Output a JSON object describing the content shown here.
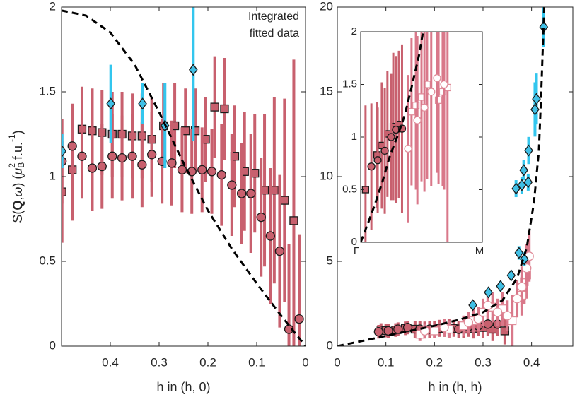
{
  "chart_data": [
    {
      "type": "scatter",
      "xlabel": "h in (h, 0)",
      "ylabel": [
        "S(",
        "Q",
        ",",
        "ω",
        ") (",
        "μ",
        "B",
        "2",
        " f.u.",
        "-1",
        ")"
      ],
      "annotation": [
        "Integrated",
        "fitted data"
      ],
      "xlim": [
        0.5,
        0
      ],
      "xticks": [
        0.4,
        0.3,
        0.2,
        0.1,
        0
      ],
      "ylim": [
        0,
        2
      ],
      "yticks": [
        0,
        0.5,
        1,
        1.5,
        2
      ],
      "series": [
        {
          "marker": "square",
          "color": "#c8606e",
          "edgecolor": "#1a1a1a",
          "errorcolor": "#c8606e",
          "x": [
            0.499,
            0.478,
            0.458,
            0.437,
            0.417,
            0.396,
            0.376,
            0.355,
            0.335,
            0.315,
            0.291,
            0.268,
            0.246,
            0.226,
            0.205,
            0.186,
            0.166,
            0.145,
            0.125,
            0.104,
            0.084,
            0.064,
            0.043,
            0.024
          ],
          "values": [
            0.91,
            1.04,
            1.28,
            1.27,
            1.26,
            1.25,
            1.25,
            1.24,
            1.24,
            1.22,
            1.3,
            1.3,
            1.27,
            1.27,
            1.22,
            1.41,
            1.4,
            1.12,
            1.03,
            1.02,
            0.92,
            0.92,
            0.86,
            0.74
          ],
          "errors": [
            0.3,
            0.3,
            0.25,
            0.25,
            0.25,
            0.25,
            0.25,
            0.25,
            0.25,
            0.25,
            0.25,
            0.25,
            0.25,
            0.25,
            0.25,
            0.3,
            0.3,
            0.3,
            0.35,
            0.35,
            0.45,
            0.55,
            0.6,
            0.95
          ]
        },
        {
          "marker": "circle",
          "color": "#c8606e",
          "edgecolor": "#1a1a1a",
          "errorcolor": "#c8606e",
          "x": [
            0.499,
            0.478,
            0.458,
            0.437,
            0.417,
            0.396,
            0.376,
            0.355,
            0.335,
            0.315,
            0.294,
            0.274,
            0.253,
            0.233,
            0.212,
            0.192,
            0.172,
            0.151,
            0.131,
            0.112,
            0.091,
            0.072,
            0.053,
            0.034,
            0.013
          ],
          "values": [
            1.09,
            1.18,
            1.12,
            1.05,
            1.06,
            1.12,
            1.11,
            1.12,
            1.07,
            1.13,
            1.09,
            1.08,
            1.04,
            1.03,
            1.04,
            1.03,
            1.01,
            0.95,
            0.9,
            0.9,
            0.76,
            0.65,
            0.56,
            0.1,
            0.16
          ],
          "errors": [
            0.25,
            0.25,
            0.25,
            0.25,
            0.25,
            0.25,
            0.25,
            0.25,
            0.25,
            0.25,
            0.25,
            0.25,
            0.25,
            0.25,
            0.25,
            0.25,
            0.3,
            0.3,
            0.3,
            0.35,
            0.35,
            0.4,
            0.45,
            0.5,
            0.5
          ]
        },
        {
          "marker": "diamond",
          "color": "#40c0e6",
          "edgecolor": "#1a1a1a",
          "errorcolor": "#33c6ee",
          "x": [
            0.499,
            0.399,
            0.334,
            0.288,
            0.23
          ],
          "values": [
            1.15,
            1.43,
            1.43,
            1.3,
            1.63
          ],
          "errors": [
            0.1,
            0.23,
            0.12,
            0.25,
            0.42
          ]
        },
        {
          "line": "dashed",
          "color": "#000000",
          "x": [
            0.5,
            0.45,
            0.4,
            0.35,
            0.3,
            0.25,
            0.2,
            0.15,
            0.1,
            0.05,
            0
          ],
          "values": [
            1.98,
            1.95,
            1.85,
            1.66,
            1.38,
            1.08,
            0.8,
            0.57,
            0.37,
            0.18,
            0
          ]
        }
      ]
    },
    {
      "type": "scatter",
      "xlabel": "h in (h, h)",
      "xlim": [
        0,
        0.485
      ],
      "xticks": [
        0,
        0.1,
        0.2,
        0.3,
        0.4
      ],
      "ylim": [
        0,
        20
      ],
      "yticks": [
        0,
        5,
        10,
        15,
        20
      ],
      "series": [
        {
          "marker": "square",
          "color": "#c8606e",
          "edgecolor": "#1a1a1a",
          "errorcolor": "#c8606e",
          "x": [
            0.09,
            0.1,
            0.12,
            0.14,
            0.16,
            0.18,
            0.2,
            0.22,
            0.24,
            0.26,
            0.28,
            0.3,
            0.32,
            0.345
          ],
          "values": [
            0.95,
            0.92,
            0.95,
            1.05,
            1.0,
            0.95,
            0.98,
            1.05,
            1.05,
            1.0,
            1.05,
            1.1,
            1.0,
            0.9
          ],
          "errors": [
            0.4,
            0.4,
            0.4,
            0.4,
            0.5,
            0.5,
            0.5,
            0.5,
            0.5,
            0.5,
            0.6,
            0.6,
            0.7,
            0.8
          ]
        },
        {
          "marker": "circle",
          "color": "#c8606e",
          "edgecolor": "#1a1a1a",
          "errorcolor": "#c8606e",
          "x": [
            0.085,
            0.105,
            0.125,
            0.145,
            0.17,
            0.19,
            0.21,
            0.23,
            0.25,
            0.27,
            0.29,
            0.31,
            0.33
          ],
          "values": [
            0.85,
            0.9,
            1.0,
            1.1,
            1.0,
            1.0,
            1.05,
            1.1,
            1.0,
            1.15,
            1.2,
            1.3,
            1.3
          ],
          "errors": [
            0.4,
            0.4,
            0.4,
            0.4,
            0.5,
            0.5,
            0.5,
            0.5,
            0.5,
            0.6,
            0.6,
            0.7,
            0.7
          ]
        },
        {
          "marker": "square",
          "color": "#ffffff",
          "edgecolor": "#e08d9a",
          "errorcolor": "#d9788a",
          "x": [
            0.17,
            0.2,
            0.23,
            0.26,
            0.28,
            0.3,
            0.32,
            0.34,
            0.36,
            0.38,
            0.385,
            0.39
          ],
          "values": [
            0.7,
            0.9,
            1.0,
            1.2,
            1.5,
            2.0,
            2.3,
            2.2,
            1.5,
            3.0,
            3.8,
            4.2
          ],
          "errors": [
            0.4,
            0.4,
            0.5,
            0.6,
            0.7,
            0.8,
            0.9,
            1.0,
            1.5,
            1.2,
            1.3,
            1.4
          ]
        },
        {
          "marker": "circle",
          "color": "#ffffff",
          "edgecolor": "#e08d9a",
          "errorcolor": "#d9788a",
          "x": [
            0.18,
            0.22,
            0.27,
            0.29,
            0.31,
            0.33,
            0.35,
            0.37,
            0.38,
            0.39,
            0.395
          ],
          "values": [
            0.9,
            1.1,
            1.4,
            1.6,
            2.4,
            2.0,
            1.8,
            2.8,
            3.5,
            4.6,
            5.3
          ],
          "errors": [
            0.4,
            0.5,
            0.6,
            0.7,
            0.8,
            0.8,
            0.9,
            1.1,
            1.2,
            1.4,
            1.5
          ]
        },
        {
          "marker": "diamond",
          "color": "#40c0e6",
          "edgecolor": "#1a1a1a",
          "errorcolor": "#33c6ee",
          "x": [
            0.279,
            0.311,
            0.336,
            0.358,
            0.374,
            0.385,
            0.368,
            0.38,
            0.393,
            0.384,
            0.394,
            0.407,
            0.41,
            0.425
          ],
          "values": [
            2.42,
            3.17,
            3.54,
            4.17,
            5.5,
            5.13,
            9.29,
            9.5,
            9.67,
            10.38,
            11.54,
            13.96,
            14.58,
            18.83
          ],
          "errors": [
            0.2,
            0.3,
            0.3,
            0.3,
            0.4,
            0.4,
            0.5,
            0.5,
            0.5,
            0.6,
            0.8,
            1.6,
            1.5,
            1.2
          ]
        },
        {
          "line": "dashed",
          "color": "#000000",
          "x": [
            0,
            0.05,
            0.1,
            0.15,
            0.2,
            0.25,
            0.3,
            0.34,
            0.37,
            0.39,
            0.405,
            0.415,
            0.42,
            0.426
          ],
          "values": [
            0,
            0.3,
            0.6,
            0.9,
            1.2,
            1.55,
            2.0,
            2.7,
            4.0,
            5.8,
            8.5,
            11.5,
            15,
            20
          ]
        }
      ]
    },
    {
      "type": "scatter",
      "xlim": [
        0,
        0.5
      ],
      "xticks": [
        {
          "value": 0,
          "label": "Γ"
        },
        {
          "value": 0.5,
          "label": "M"
        }
      ],
      "ylim": [
        0,
        2
      ],
      "yticks": [
        0,
        0.5,
        1,
        1.5,
        2
      ],
      "series": [
        {
          "marker": "square",
          "color": "#c8606e",
          "edgecolor": "#1a1a1a",
          "errorcolor": "#c8606e",
          "x": [
            0.02,
            0.067,
            0.087,
            0.11,
            0.134,
            0.157
          ],
          "values": [
            0.5,
            0.83,
            0.92,
            1.03,
            1.1,
            1.12
          ],
          "errors": [
            0.8,
            0.5,
            0.6,
            0.6,
            0.7,
            0.7
          ]
        },
        {
          "marker": "circle",
          "color": "#c8606e",
          "edgecolor": "#1a1a1a",
          "errorcolor": "#c8606e",
          "x": [
            0.044,
            0.07,
            0.099,
            0.125,
            0.145,
            0.17
          ],
          "values": [
            0.72,
            0.78,
            0.87,
            1.0,
            1.07,
            1.08
          ],
          "errors": [
            0.6,
            0.5,
            0.6,
            0.6,
            0.7,
            0.8
          ]
        },
        {
          "marker": "square",
          "color": "#ffffff",
          "edgecolor": "#e08d9a",
          "errorcolor": "#d9788a",
          "x": [
            0.209,
            0.227,
            0.25,
            0.273,
            0.32,
            0.337,
            0.357
          ],
          "values": [
            1.24,
            1.3,
            1.38,
            1.5,
            1.35,
            1.43,
            1.47
          ],
          "errors": [
            0.7,
            0.8,
            0.8,
            0.9,
            0.8,
            0.9,
            1.5
          ]
        },
        {
          "marker": "circle",
          "color": "#ffffff",
          "edgecolor": "#e08d9a",
          "errorcolor": "#d9788a",
          "x": [
            0.195,
            0.233,
            0.262,
            0.29,
            0.314,
            0.343
          ],
          "values": [
            0.89,
            1.16,
            1.28,
            1.43,
            1.56,
            1.5
          ],
          "errors": [
            0.7,
            0.8,
            0.8,
            0.9,
            0.9,
            1.0
          ]
        },
        {
          "line": "dashed",
          "color": "#000000",
          "x": [
            0,
            0.03,
            0.06,
            0.09,
            0.12,
            0.15,
            0.18,
            0.21,
            0.24,
            0.26
          ],
          "values": [
            0,
            0.18,
            0.37,
            0.58,
            0.82,
            1.0,
            1.2,
            1.48,
            1.78,
            2.05
          ]
        }
      ]
    }
  ]
}
